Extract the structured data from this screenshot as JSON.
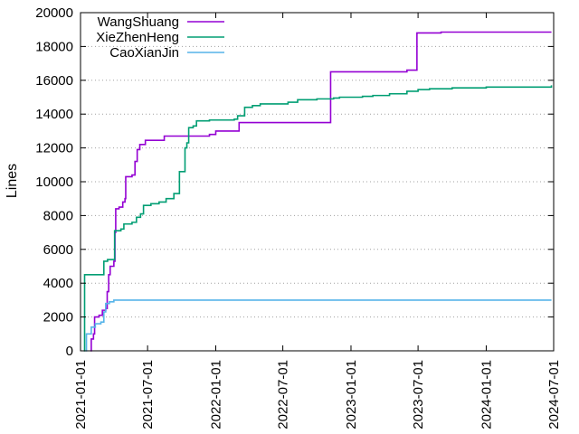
{
  "chart_data": {
    "type": "line",
    "title": "",
    "xlabel": "",
    "ylabel": "Lines",
    "ylim": [
      0,
      20000
    ],
    "xlim": [
      "2021-01-01",
      "2024-07-01"
    ],
    "y_ticks": [
      0,
      2000,
      4000,
      6000,
      8000,
      10000,
      12000,
      14000,
      16000,
      18000,
      20000
    ],
    "x_ticks": [
      "2021-01-01",
      "2021-07-01",
      "2022-01-01",
      "2022-07-01",
      "2023-01-01",
      "2023-07-01",
      "2024-01-01",
      "2024-07-01"
    ],
    "grid": "horizontal-dotted",
    "legend_position": "top-left",
    "line_style": "step",
    "series": [
      {
        "name": "WangShuang",
        "color": "#9400d3",
        "points": [
          [
            "2021-01-28",
            0
          ],
          [
            "2021-01-30",
            700
          ],
          [
            "2021-02-05",
            1000
          ],
          [
            "2021-02-08",
            2000
          ],
          [
            "2021-02-20",
            2100
          ],
          [
            "2021-03-01",
            2400
          ],
          [
            "2021-03-10",
            2500
          ],
          [
            "2021-03-14",
            3500
          ],
          [
            "2021-03-18",
            4500
          ],
          [
            "2021-03-22",
            5000
          ],
          [
            "2021-04-01",
            5300
          ],
          [
            "2021-04-04",
            7000
          ],
          [
            "2021-04-06",
            8400
          ],
          [
            "2021-04-15",
            8500
          ],
          [
            "2021-04-25",
            8800
          ],
          [
            "2021-05-01",
            9000
          ],
          [
            "2021-05-03",
            10300
          ],
          [
            "2021-05-20",
            10400
          ],
          [
            "2021-05-28",
            11200
          ],
          [
            "2021-06-03",
            11900
          ],
          [
            "2021-06-10",
            12200
          ],
          [
            "2021-06-25",
            12450
          ],
          [
            "2021-08-15",
            12700
          ],
          [
            "2021-11-15",
            12700
          ],
          [
            "2021-12-15",
            12800
          ],
          [
            "2022-01-01",
            13000
          ],
          [
            "2022-03-01",
            13000
          ],
          [
            "2022-03-05",
            13500
          ],
          [
            "2022-11-01",
            13500
          ],
          [
            "2022-11-07",
            16500
          ],
          [
            "2023-06-01",
            16600
          ],
          [
            "2023-06-28",
            18800
          ],
          [
            "2023-09-01",
            18850
          ],
          [
            "2024-06-25",
            18850
          ]
        ]
      },
      {
        "name": "XieZhenHeng",
        "color": "#009e73",
        "points": [
          [
            "2021-01-10",
            0
          ],
          [
            "2021-01-12",
            4500
          ],
          [
            "2021-02-25",
            4500
          ],
          [
            "2021-03-05",
            5300
          ],
          [
            "2021-03-15",
            5400
          ],
          [
            "2021-04-01",
            5400
          ],
          [
            "2021-04-03",
            7100
          ],
          [
            "2021-04-20",
            7200
          ],
          [
            "2021-04-28",
            7500
          ],
          [
            "2021-05-20",
            7600
          ],
          [
            "2021-06-01",
            7900
          ],
          [
            "2021-06-12",
            8100
          ],
          [
            "2021-06-20",
            8600
          ],
          [
            "2021-07-10",
            8700
          ],
          [
            "2021-08-01",
            8800
          ],
          [
            "2021-08-20",
            9000
          ],
          [
            "2021-09-10",
            9300
          ],
          [
            "2021-09-25",
            10600
          ],
          [
            "2021-10-10",
            12000
          ],
          [
            "2021-10-15",
            12300
          ],
          [
            "2021-10-20",
            13200
          ],
          [
            "2021-11-01",
            13300
          ],
          [
            "2021-11-10",
            13600
          ],
          [
            "2021-12-15",
            13650
          ],
          [
            "2022-02-20",
            13700
          ],
          [
            "2022-03-01",
            13900
          ],
          [
            "2022-03-20",
            14400
          ],
          [
            "2022-04-10",
            14500
          ],
          [
            "2022-05-01",
            14600
          ],
          [
            "2022-07-15",
            14700
          ],
          [
            "2022-08-10",
            14850
          ],
          [
            "2022-10-01",
            14900
          ],
          [
            "2022-11-15",
            14950
          ],
          [
            "2022-12-01",
            15000
          ],
          [
            "2023-02-01",
            15050
          ],
          [
            "2023-03-01",
            15100
          ],
          [
            "2023-04-15",
            15200
          ],
          [
            "2023-06-01",
            15350
          ],
          [
            "2023-07-01",
            15450
          ],
          [
            "2023-08-01",
            15500
          ],
          [
            "2023-10-01",
            15550
          ],
          [
            "2024-01-01",
            15600
          ],
          [
            "2024-06-25",
            15700
          ]
        ]
      },
      {
        "name": "CaoXianJin",
        "color": "#56b4e9",
        "points": [
          [
            "2021-01-15",
            0
          ],
          [
            "2021-01-17",
            1000
          ],
          [
            "2021-01-30",
            1400
          ],
          [
            "2021-02-10",
            1600
          ],
          [
            "2021-02-25",
            1700
          ],
          [
            "2021-03-05",
            2300
          ],
          [
            "2021-03-10",
            2800
          ],
          [
            "2021-03-20",
            2900
          ],
          [
            "2021-04-01",
            3000
          ],
          [
            "2024-06-25",
            3000
          ]
        ]
      }
    ]
  }
}
